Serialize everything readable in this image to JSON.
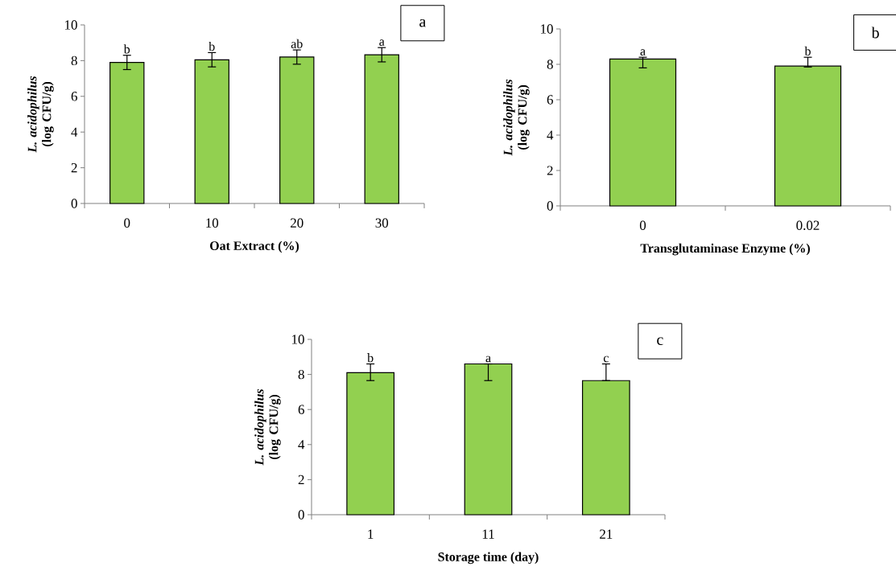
{
  "chart_data": [
    {
      "type": "bar",
      "categories": [
        "0",
        "10",
        "20",
        "30"
      ],
      "values": [
        7.9,
        8.05,
        8.2,
        8.33
      ],
      "errors": [
        0.4,
        0.4,
        0.4,
        0.4
      ],
      "color": "#92d050",
      "ylim": [
        0,
        10
      ],
      "yticks": [
        0,
        2,
        4,
        6,
        8,
        10
      ],
      "xlabel": "Oat Extract (%)",
      "ylabel": "*L. acidophilus* (log CFU/g)",
      "annotations": [
        {
          "text": "b",
          "x": "0",
          "y": 7.9
        },
        {
          "text": "b",
          "x": "10",
          "y": 8.05
        },
        {
          "text": "ab",
          "x": "20",
          "y": 8.2
        },
        {
          "text": "a",
          "x": "30",
          "y": 8.33
        },
        "a"
      ]
    },
    {
      "type": "bar",
      "categories": [
        "0",
        "0.02"
      ],
      "values": [
        8.3,
        7.9
      ],
      "errors": [
        [
          7.8,
          8.4
        ],
        [
          7.85,
          8.4
        ]
      ],
      "color": "#92d050",
      "ylim": [
        0,
        10
      ],
      "yticks": [
        0,
        2,
        4,
        6,
        8,
        10
      ],
      "xlabel": "Transglutaminase Enzyme (%)",
      "ylabel": "*L. acidophilus* (log CFU/g)",
      "annotations": [
        {
          "text": "a",
          "x": "0",
          "y": 8.3
        },
        {
          "text": "b",
          "x": "0.02",
          "y": 7.9
        },
        "b"
      ]
    },
    {
      "type": "bar",
      "categories": [
        "1",
        "11",
        "21"
      ],
      "values": [
        8.1,
        8.6,
        7.65
      ],
      "errors": [
        [
          7.65,
          8.6
        ],
        [
          7.65,
          8.6
        ],
        [
          7.65,
          8.6
        ]
      ],
      "color": "#92d050",
      "ylim": [
        0,
        10
      ],
      "yticks": [
        0,
        2,
        4,
        6,
        8,
        10
      ],
      "xlabel": "Storage time (day)",
      "ylabel": "*L. acidophilus* (log CFU/g)",
      "annotations": [
        {
          "text": "b",
          "x": "1",
          "y": 8.1
        },
        {
          "text": "a",
          "x": "11",
          "y": 8.6
        },
        {
          "text": "c",
          "x": "21",
          "y": 7.65
        },
        "c"
      ]
    }
  ]
}
